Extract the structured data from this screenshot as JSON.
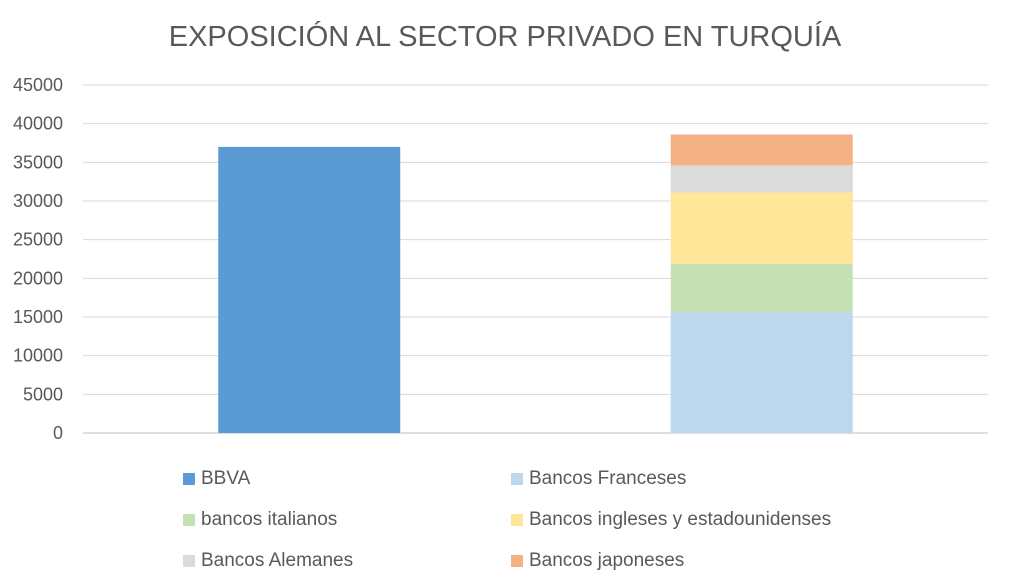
{
  "chart_data": {
    "type": "bar",
    "stacked": true,
    "title": "EXPOSICIÓN AL SECTOR PRIVADO EN TURQUÍA",
    "xlabel": "",
    "ylabel": "",
    "ylim": [
      0,
      45000
    ],
    "yticks": [
      "0",
      "5000",
      "10000",
      "15000",
      "20000",
      "25000",
      "30000",
      "35000",
      "40000",
      "45000"
    ],
    "grid": true,
    "legend_position": "bottom",
    "categories": [
      "",
      ""
    ],
    "series": [
      {
        "name": "BBVA",
        "color": "#5B9BD5",
        "values": [
          37000,
          0
        ]
      },
      {
        "name": "Bancos Franceses",
        "color": "#BDD7EE",
        "values": [
          0,
          15600
        ]
      },
      {
        "name": "bancos italianos",
        "color": "#C5E0B4",
        "values": [
          0,
          6300
        ]
      },
      {
        "name": "Bancos ingleses y estadounidenses",
        "color": "#FFE699",
        "values": [
          0,
          9200
        ]
      },
      {
        "name": "Bancos Alemanes",
        "color": "#DBDBDB",
        "values": [
          0,
          3500
        ]
      },
      {
        "name": "Bancos japoneses",
        "color": "#F4B183",
        "values": [
          0,
          4000
        ]
      }
    ]
  }
}
